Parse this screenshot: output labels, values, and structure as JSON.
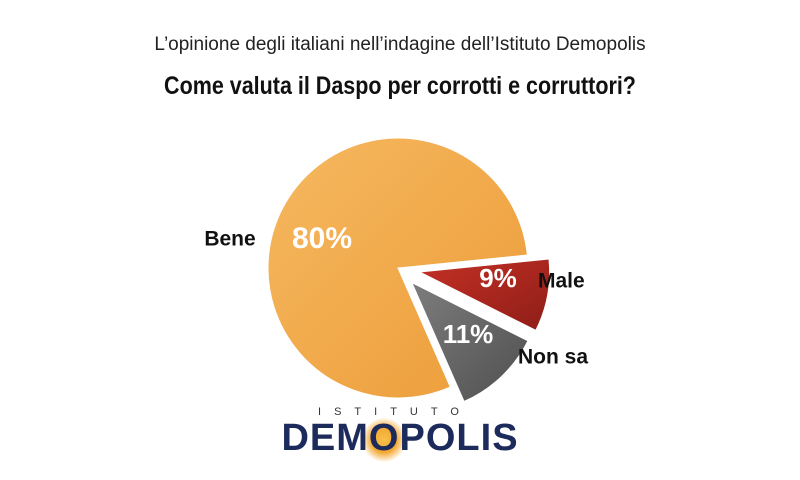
{
  "header": {
    "subtitle": "L’opinione degli italiani nell’indagine dell’Istituto Demopolis",
    "title": "Come valuta il Daspo per corrotti e corruttori?"
  },
  "chart_data": {
    "type": "pie",
    "title": "Come valuta il Daspo per corrotti e corruttori?",
    "subtitle": "L’opinione degli italiani nell’indagine dell’Istituto Demopolis",
    "slices": [
      {
        "label": "Bene",
        "value": 80,
        "display": "80%",
        "color": "#f2a84a"
      },
      {
        "label": "Male",
        "value": 9,
        "display": "9%",
        "color": "#b22a22"
      },
      {
        "label": "Non sa",
        "value": 11,
        "display": "11%",
        "color": "#6a6a6a"
      }
    ]
  },
  "logo": {
    "top_text": "ISTITUTO",
    "main_text": "DEMOPOLIS"
  }
}
